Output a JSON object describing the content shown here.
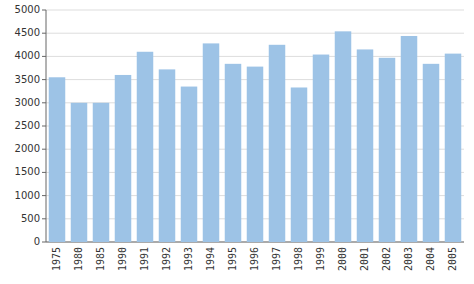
{
  "chart_data": {
    "type": "bar",
    "categories": [
      "1975",
      "1980",
      "1985",
      "1990",
      "1991",
      "1992",
      "1993",
      "1994",
      "1995",
      "1996",
      "1997",
      "1998",
      "1999",
      "2000",
      "2001",
      "2002",
      "2003",
      "2004",
      "2005"
    ],
    "values": [
      3550,
      3000,
      3000,
      3600,
      4100,
      3720,
      3350,
      4280,
      3840,
      3780,
      4250,
      3330,
      4040,
      4540,
      4150,
      3970,
      4440,
      3840,
      4060
    ],
    "color": "#9DC3E6",
    "ylim": [
      0,
      5000
    ],
    "yticks": [
      0,
      500,
      1000,
      1500,
      2000,
      2500,
      3000,
      3500,
      4000,
      4500,
      5000
    ],
    "grid": true
  }
}
